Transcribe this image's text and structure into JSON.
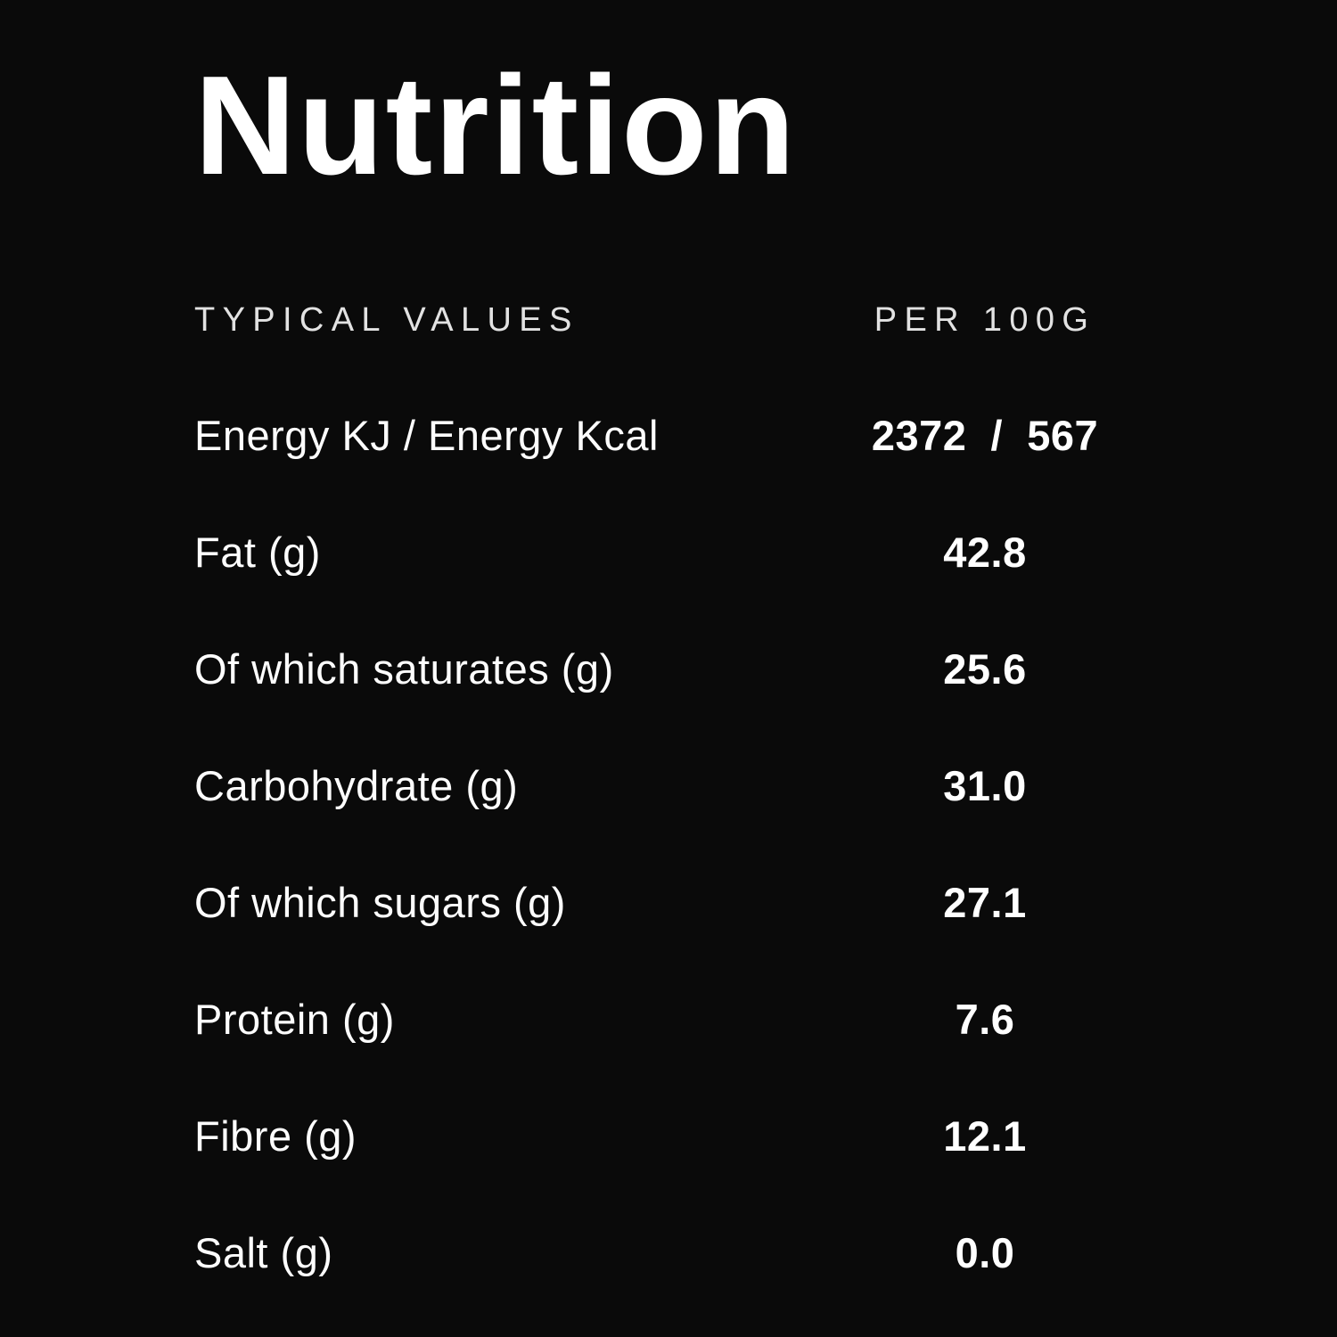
{
  "title": "Nutrition",
  "table": {
    "header": {
      "label": "TYPICAL VALUES",
      "value": "PER 100G"
    },
    "rows": [
      {
        "label": "Energy KJ / Energy Kcal",
        "value": "2372  /  567"
      },
      {
        "label": "Fat (g)",
        "value": "42.8"
      },
      {
        "label": "Of which saturates (g)",
        "value": "25.6"
      },
      {
        "label": "Carbohydrate (g)",
        "value": "31.0"
      },
      {
        "label": "Of which sugars (g)",
        "value": "27.1"
      },
      {
        "label": "Protein (g)",
        "value": "7.6"
      },
      {
        "label": "Fibre (g)",
        "value": "12.1"
      },
      {
        "label": "Salt (g)",
        "value": "0.0"
      }
    ]
  },
  "colors": {
    "background": "#0a0a0a",
    "text": "#ffffff",
    "header_text": "#e2e2e2"
  }
}
